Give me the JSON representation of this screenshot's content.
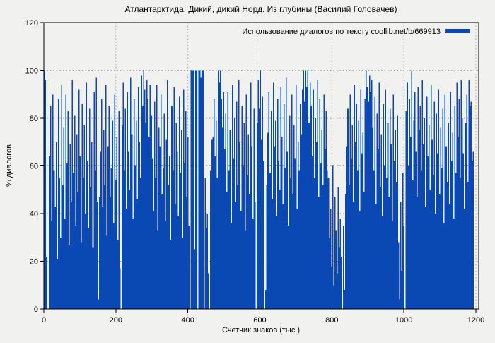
{
  "title": "Атлантарктида. Дикий, дикий Норд. Из глубины (Василий Головачев)",
  "legend": {
    "label": "Использование диалогов по тексту coollib.net/b/669913",
    "swatch_color": "#0a49b4"
  },
  "axes": {
    "y_label": "% диалогов",
    "x_label": "Счетчик знаков (тыс.)",
    "y_ticks": [
      0,
      20,
      40,
      60,
      80,
      100,
      120
    ],
    "x_ticks": [
      0,
      200,
      400,
      600,
      800,
      1000,
      1200
    ]
  },
  "colors": {
    "bar": "#0a49b4",
    "grid": "#a0a0a0",
    "frame": "#000000",
    "background": "#f1f1ef"
  },
  "chart_data": {
    "type": "bar",
    "title": "Атлантарктида. Дикий, дикий Норд. Из глубины (Василий Головачев)",
    "xlabel": "Счетчик знаков (тыс.)",
    "ylabel": "% диалогов",
    "legend": "Использование диалогов по тексту coollib.net/b/669913",
    "legend_position": "top-right",
    "grid": true,
    "xlim": [
      0,
      1200
    ],
    "ylim": [
      0,
      120
    ],
    "x_start": 0,
    "x_step": 3,
    "values": [
      100,
      96,
      22,
      0,
      0,
      64,
      85,
      37,
      90,
      58,
      43,
      70,
      21,
      88,
      55,
      30,
      94,
      52,
      76,
      38,
      90,
      61,
      83,
      27,
      69,
      45,
      96,
      57,
      81,
      35,
      73,
      49,
      92,
      64,
      28,
      86,
      55,
      77,
      40,
      95,
      62,
      34,
      84,
      51,
      70,
      26,
      91,
      58,
      97,
      45,
      4,
      47,
      66,
      88,
      43,
      75,
      52,
      94,
      31,
      68,
      85,
      47,
      59,
      79,
      36,
      90,
      54,
      72,
      29,
      83,
      17,
      0,
      77,
      95,
      58,
      84,
      42,
      91,
      66,
      50,
      97,
      73,
      38,
      88,
      60,
      79,
      46,
      93,
      70,
      55,
      98,
      85,
      100,
      92,
      78,
      96,
      88,
      72,
      94,
      81,
      63,
      41,
      87,
      55,
      94,
      33,
      76,
      68,
      90,
      48,
      59,
      82,
      37,
      71,
      96,
      52,
      64,
      29,
      85,
      58,
      93,
      44,
      78,
      66,
      39,
      89,
      57,
      75,
      30,
      92,
      61,
      83,
      47,
      72,
      35,
      0,
      100,
      100,
      100,
      25,
      100,
      100,
      0,
      100,
      100,
      97,
      100,
      100,
      0,
      55,
      34,
      40,
      15,
      0,
      58,
      71,
      72,
      88,
      64,
      79,
      55,
      100,
      95,
      100,
      88,
      76,
      91,
      67,
      82,
      49,
      91,
      58,
      75,
      36,
      94,
      63,
      80,
      45,
      87,
      52,
      96,
      70,
      41,
      85,
      60,
      78,
      33,
      90,
      56,
      73,
      48,
      95,
      68,
      38,
      84,
      45,
      0,
      78,
      96,
      84,
      100,
      71,
      89,
      62,
      0,
      8,
      52,
      74,
      91,
      57,
      83,
      46,
      95,
      68,
      79,
      39,
      88,
      62,
      50,
      93,
      72,
      44,
      86,
      59,
      97,
      66,
      35,
      81,
      55,
      90,
      48,
      77,
      63,
      94,
      42,
      70,
      58,
      86,
      73,
      92,
      100,
      87,
      100,
      93,
      100,
      78,
      95,
      85,
      64,
      92,
      55,
      80,
      70,
      96,
      47,
      88,
      61,
      75,
      52,
      90,
      67,
      83,
      58,
      55,
      30,
      42,
      18,
      60,
      10,
      47,
      33,
      15,
      51,
      26,
      38,
      22,
      0,
      35,
      8,
      48,
      68,
      84,
      52,
      90,
      63,
      77,
      45,
      94,
      70,
      86,
      58,
      79,
      41,
      92,
      65,
      74,
      49,
      88,
      100,
      93,
      87,
      98,
      91,
      96,
      76,
      58,
      89,
      44,
      82,
      67,
      95,
      51,
      73,
      39,
      86,
      60,
      92,
      55,
      78,
      47,
      84,
      69,
      37,
      90,
      62,
      75,
      53,
      81,
      28,
      4,
      45,
      16,
      57,
      35,
      0,
      83,
      95,
      60,
      88,
      72,
      100,
      54,
      79,
      91,
      66,
      47,
      93,
      75,
      85,
      58,
      96,
      69,
      80,
      43,
      89,
      64,
      77,
      50,
      94,
      71,
      56,
      87,
      40,
      82,
      65,
      92,
      48,
      76,
      59,
      84,
      36,
      90,
      68,
      53,
      78,
      44,
      91,
      62,
      74,
      38,
      85,
      57,
      95,
      72,
      88,
      55,
      96,
      80,
      65,
      42,
      78,
      90,
      53,
      96,
      85,
      87,
      62,
      66,
      0,
      0
    ]
  }
}
